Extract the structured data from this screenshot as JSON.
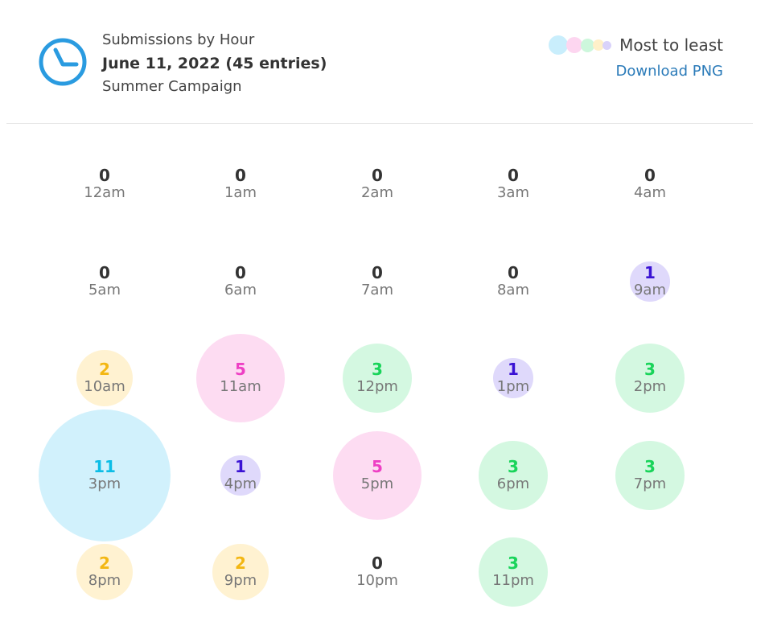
{
  "header": {
    "subtitle": "Submissions by Hour",
    "date": "June 11, 2022 (45 entries)",
    "campaign": "Summer Campaign",
    "clock_icon": "clock-icon",
    "clock_color": "#2a9be0"
  },
  "legend": {
    "label": "Most to least",
    "colors": [
      "#c9eefc",
      "#fdd6f0",
      "#cdf7dc",
      "#fff0c9",
      "#d9d2fa"
    ]
  },
  "download": {
    "label": "Download PNG"
  },
  "tier_colors": {
    "11": {
      "fill": "#c9eefc",
      "text": "#0bbde6"
    },
    "5": {
      "fill": "#fdd6f0",
      "text": "#ee3fc4"
    },
    "3": {
      "fill": "#cdf7dc",
      "text": "#19d45a"
    },
    "2": {
      "fill": "#fff0c9",
      "text": "#f3b713"
    },
    "1": {
      "fill": "#d9d2fa",
      "text": "#3a12d4"
    },
    "0": {
      "fill": "transparent",
      "text": "#333333"
    }
  },
  "chart_data": {
    "type": "bubble-grid",
    "title": "Submissions by Hour",
    "categories": [
      "12am",
      "1am",
      "2am",
      "3am",
      "4am",
      "5am",
      "6am",
      "7am",
      "8am",
      "9am",
      "10am",
      "11am",
      "12pm",
      "1pm",
      "2pm",
      "3pm",
      "4pm",
      "5pm",
      "6pm",
      "7pm",
      "8pm",
      "9pm",
      "10pm",
      "11pm"
    ],
    "values": [
      0,
      0,
      0,
      0,
      0,
      0,
      0,
      0,
      0,
      1,
      2,
      5,
      3,
      1,
      3,
      11,
      1,
      5,
      3,
      3,
      2,
      2,
      0,
      3
    ],
    "columns": 5
  }
}
